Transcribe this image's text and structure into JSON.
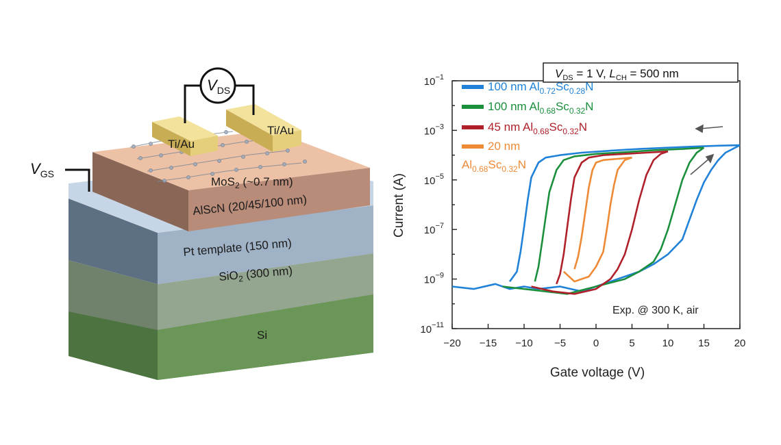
{
  "device": {
    "electrode_left": "Ti/Au",
    "electrode_right": "Ti/Au",
    "vds_symbol": "V",
    "vds_sub": "DS",
    "vgs_symbol": "V",
    "vgs_sub": "GS",
    "mos2_main": "MoS",
    "mos2_sub": "2",
    "mos2_rest": " (~0.7 nm)",
    "alscn_label": "AlScN (20/45/100 nm)",
    "pt_label": "Pt template (150 nm)",
    "sio2_main": "SiO",
    "sio2_sub": "2",
    "sio2_rest": " (300 nm)",
    "si_label": "Si",
    "colors": {
      "electrode": "#e6cf7a",
      "mos2": "#e9b89b",
      "alscn": "#b98c7a",
      "pt": "#9fb2c6",
      "sio2": "#8fa18a",
      "si": "#5f8a4e"
    }
  },
  "chart_data": {
    "type": "line",
    "title_box": {
      "v_sym": "V",
      "v_sub": "DS",
      "v_val": " = 1 V, ",
      "l_sym": "L",
      "l_sub": "CH",
      "l_val": " = 500 nm"
    },
    "xlabel": "Gate voltage (V)",
    "ylabel": "Current (A)",
    "xlim": [
      -20,
      20
    ],
    "ylim_log10": [
      -11,
      -1
    ],
    "y_scale": "log",
    "xticks": [
      -20,
      -15,
      -10,
      -5,
      0,
      5,
      10,
      15,
      20
    ],
    "xtick_labels": [
      "−20",
      "−15",
      "−10",
      "−5",
      "0",
      "5",
      "10",
      "15",
      "20"
    ],
    "yticks_base": "10",
    "yticks_exp": [
      "−1",
      "−3",
      "−5",
      "−7",
      "−9",
      "−11"
    ],
    "annotation": "Exp. @ 300 K, air",
    "legend_placement": "top-left",
    "series": [
      {
        "name_parts": [
          "100 nm Al",
          "0.72",
          "Sc",
          "0.28",
          "N"
        ],
        "color": "#1f82d8",
        "forward": [
          [
            -20,
            -9.3
          ],
          [
            -17,
            -9.4
          ],
          [
            -14,
            -9.2
          ],
          [
            -12,
            -9.4
          ],
          [
            -10,
            -9.3
          ],
          [
            -8,
            -9.4
          ],
          [
            -5,
            -9.3
          ],
          [
            -2,
            -9.5
          ],
          [
            0,
            -9.3
          ],
          [
            2,
            -9.1
          ],
          [
            4,
            -8.9
          ],
          [
            6,
            -8.7
          ],
          [
            8,
            -8.4
          ],
          [
            10,
            -8.0
          ],
          [
            12,
            -7.4
          ],
          [
            13,
            -6.6
          ],
          [
            14,
            -5.8
          ],
          [
            15,
            -5.1
          ],
          [
            16,
            -4.6
          ],
          [
            17,
            -4.2
          ],
          [
            18,
            -3.9
          ],
          [
            20,
            -3.6
          ]
        ],
        "reverse": [
          [
            20,
            -3.6
          ],
          [
            17,
            -3.62
          ],
          [
            14,
            -3.65
          ],
          [
            10,
            -3.7
          ],
          [
            6,
            -3.75
          ],
          [
            2,
            -3.82
          ],
          [
            -2,
            -3.9
          ],
          [
            -5,
            -4.0
          ],
          [
            -7,
            -4.1
          ],
          [
            -8,
            -4.3
          ],
          [
            -9,
            -4.9
          ],
          [
            -9.5,
            -5.8
          ],
          [
            -10,
            -6.9
          ],
          [
            -10.5,
            -7.9
          ],
          [
            -11,
            -8.7
          ],
          [
            -12,
            -9.1
          ]
        ]
      },
      {
        "name_parts": [
          "100 nm Al",
          "0.68",
          "Sc",
          "0.32",
          "N"
        ],
        "color": "#1a8f3c",
        "forward": [
          [
            -13,
            -9.3
          ],
          [
            -10,
            -9.4
          ],
          [
            -7,
            -9.5
          ],
          [
            -4,
            -9.6
          ],
          [
            0,
            -9.3
          ],
          [
            4,
            -9.0
          ],
          [
            6,
            -8.7
          ],
          [
            8,
            -8.3
          ],
          [
            9,
            -7.8
          ],
          [
            10,
            -7.0
          ],
          [
            11,
            -6.0
          ],
          [
            12,
            -5.0
          ],
          [
            13,
            -4.3
          ],
          [
            14,
            -3.9
          ],
          [
            15,
            -3.7
          ]
        ],
        "reverse": [
          [
            15,
            -3.7
          ],
          [
            12,
            -3.75
          ],
          [
            8,
            -3.8
          ],
          [
            4,
            -3.88
          ],
          [
            0,
            -3.95
          ],
          [
            -3,
            -4.05
          ],
          [
            -4.5,
            -4.2
          ],
          [
            -5.5,
            -4.6
          ],
          [
            -6.5,
            -5.5
          ],
          [
            -7,
            -6.5
          ],
          [
            -7.5,
            -7.5
          ],
          [
            -8,
            -8.5
          ],
          [
            -8.5,
            -9.1
          ]
        ]
      },
      {
        "name_parts": [
          "45 nm Al",
          "0.68",
          "Sc",
          "0.32",
          "N"
        ],
        "color": "#b0202a",
        "forward": [
          [
            -9,
            -9.3
          ],
          [
            -6,
            -9.5
          ],
          [
            -3,
            -9.6
          ],
          [
            0,
            -9.4
          ],
          [
            2,
            -9.0
          ],
          [
            3,
            -8.6
          ],
          [
            4,
            -8.0
          ],
          [
            5,
            -7.0
          ],
          [
            6,
            -5.8
          ],
          [
            7,
            -4.8
          ],
          [
            8,
            -4.2
          ],
          [
            9,
            -3.95
          ],
          [
            10,
            -3.85
          ]
        ],
        "reverse": [
          [
            10,
            -3.85
          ],
          [
            7,
            -3.9
          ],
          [
            4,
            -3.95
          ],
          [
            1,
            -4.0
          ],
          [
            -1,
            -4.1
          ],
          [
            -2,
            -4.3
          ],
          [
            -3,
            -4.9
          ],
          [
            -3.5,
            -5.8
          ],
          [
            -4,
            -6.9
          ],
          [
            -4.5,
            -8.0
          ],
          [
            -5,
            -8.8
          ],
          [
            -5.5,
            -9.2
          ]
        ]
      },
      {
        "name_parts_line1": "20 nm",
        "name_parts": [
          "Al",
          "0.68",
          "Sc",
          "0.32",
          "N"
        ],
        "color": "#ee8a35",
        "forward": [
          [
            -4.5,
            -8.7
          ],
          [
            -3,
            -9.1
          ],
          [
            -1,
            -8.9
          ],
          [
            0,
            -8.5
          ],
          [
            1,
            -7.9
          ],
          [
            1.5,
            -7.0
          ],
          [
            2,
            -6.0
          ],
          [
            2.5,
            -5.2
          ],
          [
            3,
            -4.6
          ],
          [
            4,
            -4.2
          ],
          [
            5,
            -4.1
          ]
        ],
        "reverse": [
          [
            5,
            -4.1
          ],
          [
            3,
            -4.15
          ],
          [
            1,
            -4.2
          ],
          [
            0,
            -4.3
          ],
          [
            -0.5,
            -4.6
          ],
          [
            -1,
            -5.3
          ],
          [
            -1.5,
            -6.3
          ],
          [
            -2,
            -7.3
          ],
          [
            -2.5,
            -8.1
          ],
          [
            -3,
            -8.6
          ]
        ]
      }
    ]
  }
}
